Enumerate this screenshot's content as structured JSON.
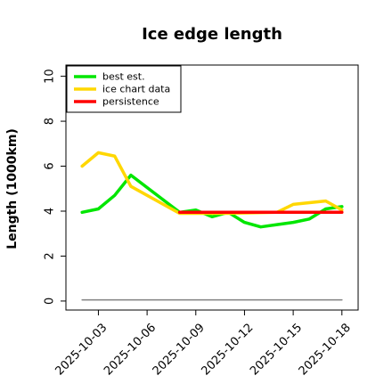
{
  "chart_data": {
    "type": "line",
    "title": "Ice edge length",
    "xlabel": "",
    "ylabel": "Length (1000km)",
    "ylim": [
      -0.4,
      10.5
    ],
    "xlim": [
      "2025-10-01",
      "2025-10-19"
    ],
    "yticks": [
      0,
      2,
      4,
      6,
      8,
      10
    ],
    "xticks": [
      "2025-10-03",
      "2025-10-06",
      "2025-10-09",
      "2025-10-12",
      "2025-10-15",
      "2025-10-18"
    ],
    "grid": false,
    "legend_position": "top-left",
    "series": [
      {
        "name": "best est.",
        "color": "#00e600",
        "x": [
          "2025-10-02",
          "2025-10-03",
          "2025-10-04",
          "2025-10-05",
          "2025-10-06",
          "2025-10-07",
          "2025-10-08",
          "2025-10-09",
          "2025-10-10",
          "2025-10-11",
          "2025-10-12",
          "2025-10-13",
          "2025-10-14",
          "2025-10-15",
          "2025-10-16",
          "2025-10-17",
          "2025-10-18"
        ],
        "values": [
          3.95,
          4.1,
          4.7,
          5.6,
          5.05,
          4.5,
          3.95,
          4.05,
          3.75,
          3.95,
          3.5,
          3.3,
          3.4,
          3.5,
          3.65,
          4.1,
          4.2
        ]
      },
      {
        "name": "ice chart data",
        "color": "#ffd700",
        "x": [
          "2025-10-02",
          "2025-10-03",
          "2025-10-04",
          "2025-10-05",
          "2025-10-08",
          "2025-10-11",
          "2025-10-14",
          "2025-10-15",
          "2025-10-17",
          "2025-10-18"
        ],
        "values": [
          6.0,
          6.6,
          6.45,
          5.1,
          3.9,
          3.9,
          3.95,
          4.3,
          4.45,
          4.05
        ]
      },
      {
        "name": "persistence",
        "color": "#ff0000",
        "x": [
          "2025-10-08",
          "2025-10-18"
        ],
        "values": [
          3.95,
          3.95
        ]
      },
      {
        "name": "",
        "color": "#808080",
        "x": [
          "2025-10-02",
          "2025-10-18"
        ],
        "values": [
          0.05,
          0.05
        ]
      }
    ]
  }
}
